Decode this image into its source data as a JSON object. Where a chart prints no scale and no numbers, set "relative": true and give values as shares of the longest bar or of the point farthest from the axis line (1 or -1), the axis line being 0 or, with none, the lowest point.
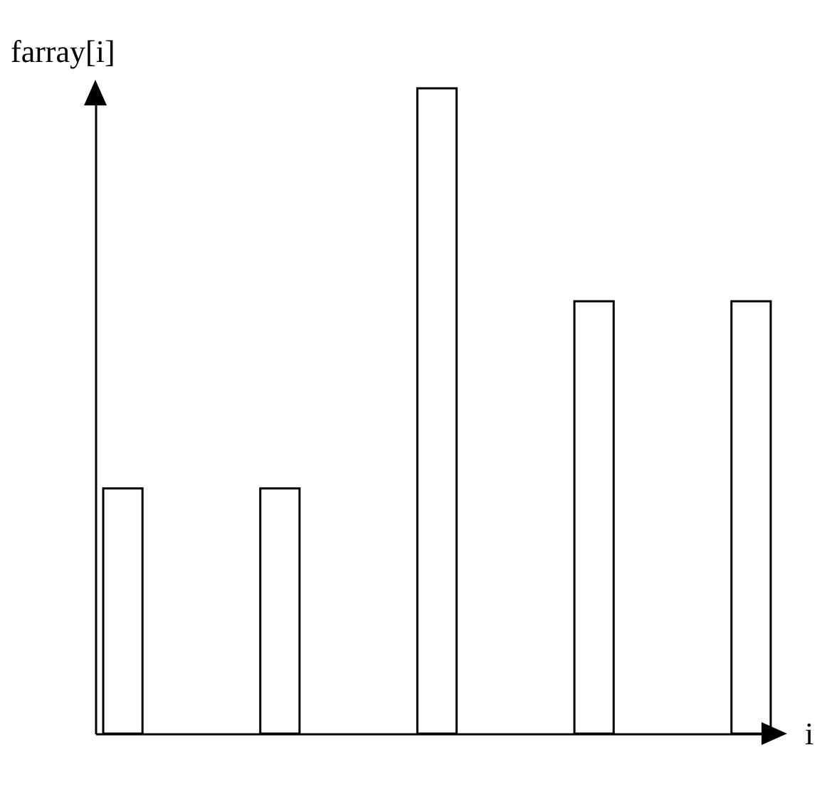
{
  "chart_data": {
    "type": "bar",
    "xlabel": "i",
    "ylabel": "farray[i]",
    "relative": true,
    "categories": [
      null,
      null,
      null,
      null,
      null
    ],
    "values": [
      0.38,
      0.38,
      1,
      0.67,
      0.67
    ],
    "color": "#ffffff"
  }
}
